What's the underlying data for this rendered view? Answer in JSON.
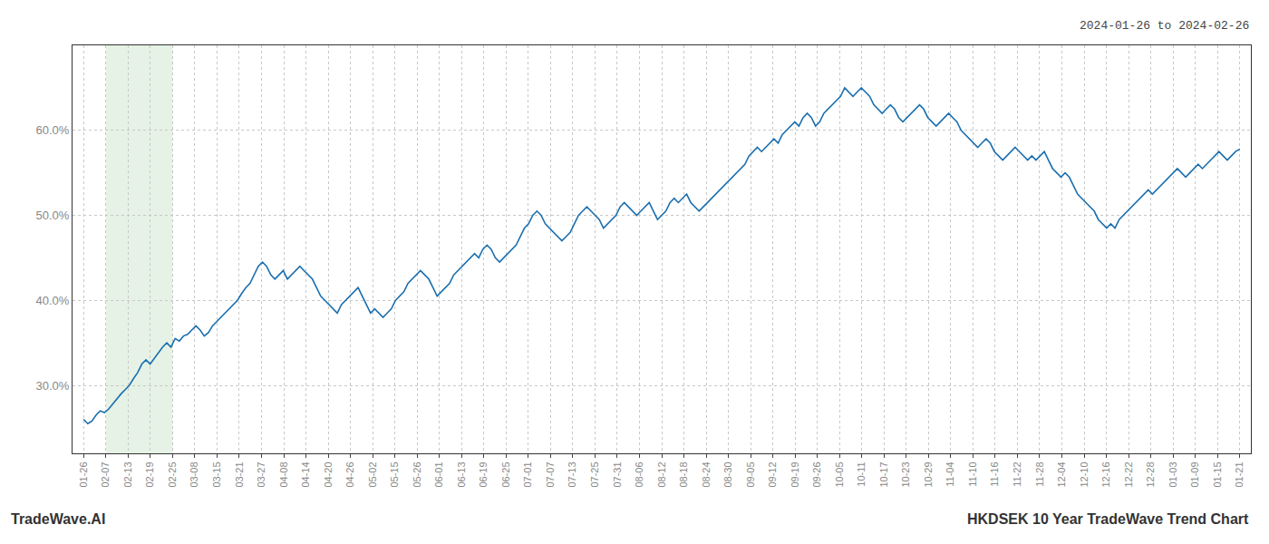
{
  "chart_data": {
    "type": "line",
    "title": "HKDSEK 10 Year TradeWave Trend Chart",
    "subtitle": "2024-01-26 to 2024-02-26",
    "annotations": [
      "TradeWave.AI"
    ],
    "color": "#1a6faf",
    "grid": true,
    "shaded_region": {
      "start": "02-07",
      "end": "02-25",
      "color": "#d4ead4"
    },
    "ylim": [
      22.0,
      70.0
    ],
    "yticks": [
      {
        "value": 30.0,
        "label": "30.0%"
      },
      {
        "value": 40.0,
        "label": "40.0%"
      },
      {
        "value": 50.0,
        "label": "50.0%"
      },
      {
        "value": 60.0,
        "label": "60.0%"
      }
    ],
    "xlim": [
      -0.5,
      52.5
    ],
    "xticks": [
      {
        "value": 0,
        "label": "01-26"
      },
      {
        "value": 1,
        "label": "02-07"
      },
      {
        "value": 2,
        "label": "02-13"
      },
      {
        "value": 3,
        "label": "02-19"
      },
      {
        "value": 4,
        "label": "02-25"
      },
      {
        "value": 5,
        "label": "03-08"
      },
      {
        "value": 6,
        "label": "03-15"
      },
      {
        "value": 7,
        "label": "03-21"
      },
      {
        "value": 8,
        "label": "03-27"
      },
      {
        "value": 9,
        "label": "04-08"
      },
      {
        "value": 10,
        "label": "04-14"
      },
      {
        "value": 11,
        "label": "04-20"
      },
      {
        "value": 12,
        "label": "04-26"
      },
      {
        "value": 13,
        "label": "05-02"
      },
      {
        "value": 14,
        "label": "05-15"
      },
      {
        "value": 15,
        "label": "05-26"
      },
      {
        "value": 16,
        "label": "06-01"
      },
      {
        "value": 17,
        "label": "06-13"
      },
      {
        "value": 18,
        "label": "06-19"
      },
      {
        "value": 19,
        "label": "06-25"
      },
      {
        "value": 20,
        "label": "07-01"
      },
      {
        "value": 21,
        "label": "07-07"
      },
      {
        "value": 22,
        "label": "07-13"
      },
      {
        "value": 23,
        "label": "07-25"
      },
      {
        "value": 24,
        "label": "07-31"
      },
      {
        "value": 25,
        "label": "08-06"
      },
      {
        "value": 26,
        "label": "08-12"
      },
      {
        "value": 27,
        "label": "08-18"
      },
      {
        "value": 28,
        "label": "08-24"
      },
      {
        "value": 29,
        "label": "08-30"
      },
      {
        "value": 30,
        "label": "09-05"
      },
      {
        "value": 31,
        "label": "09-12"
      },
      {
        "value": 32,
        "label": "09-19"
      },
      {
        "value": 33,
        "label": "09-26"
      },
      {
        "value": 34,
        "label": "10-05"
      },
      {
        "value": 35,
        "label": "10-11"
      },
      {
        "value": 36,
        "label": "10-17"
      },
      {
        "value": 37,
        "label": "10-23"
      },
      {
        "value": 38,
        "label": "10-29"
      },
      {
        "value": 39,
        "label": "11-04"
      },
      {
        "value": 40,
        "label": "11-10"
      },
      {
        "value": 41,
        "label": "11-16"
      },
      {
        "value": 42,
        "label": "11-22"
      },
      {
        "value": 43,
        "label": "11-28"
      },
      {
        "value": 44,
        "label": "12-04"
      },
      {
        "value": 45,
        "label": "12-10"
      },
      {
        "value": 46,
        "label": "12-16"
      },
      {
        "value": 47,
        "label": "12-22"
      },
      {
        "value": 48,
        "label": "12-28"
      },
      {
        "value": 49,
        "label": "01-03"
      },
      {
        "value": 50,
        "label": "01-09"
      },
      {
        "value": 51,
        "label": "01-15"
      },
      {
        "value": 52,
        "label": "01-21"
      }
    ],
    "values": [
      26.0,
      25.5,
      25.8,
      26.5,
      27.0,
      26.8,
      27.2,
      27.8,
      28.5,
      29.0,
      29.5,
      30.0,
      30.8,
      31.5,
      32.5,
      33.0,
      32.5,
      33.2,
      33.8,
      34.5,
      35.0,
      34.5,
      35.5,
      35.2,
      35.8,
      36.0,
      36.5,
      37.0,
      36.5,
      35.8,
      36.2,
      37.0,
      37.5,
      38.0,
      38.5,
      39.0,
      39.5,
      40.0,
      40.8,
      41.5,
      42.0,
      43.0,
      44.0,
      44.5,
      44.0,
      43.0,
      42.5,
      43.0,
      43.5,
      42.5,
      43.0,
      43.5,
      44.0,
      43.5,
      43.0,
      42.5,
      41.5,
      40.5,
      40.0,
      39.5,
      39.0,
      38.5,
      39.5,
      40.0,
      40.5,
      41.0,
      41.5,
      40.5,
      39.5,
      38.5,
      39.0,
      38.5,
      38.0,
      38.5,
      39.0,
      40.0,
      40.5,
      41.0,
      42.0,
      42.5,
      43.0,
      43.5,
      43.0,
      42.5,
      41.5,
      40.5,
      41.0,
      41.5,
      42.0,
      43.0,
      43.5,
      44.0,
      44.5,
      45.0,
      45.5,
      45.0,
      46.0,
      46.5,
      46.0,
      45.0,
      44.5,
      45.0,
      45.5,
      46.0,
      46.5,
      47.5,
      48.5,
      49.0,
      50.0,
      50.5,
      50.0,
      49.0,
      48.5,
      48.0,
      47.5,
      47.0,
      47.5,
      48.0,
      49.0,
      50.0,
      50.5,
      51.0,
      50.5,
      50.0,
      49.5,
      48.5,
      49.0,
      49.5,
      50.0,
      51.0,
      51.5,
      51.0,
      50.5,
      50.0,
      50.5,
      51.0,
      51.5,
      50.5,
      49.5,
      50.0,
      50.5,
      51.5,
      52.0,
      51.5,
      52.0,
      52.5,
      51.5,
      51.0,
      50.5,
      51.0,
      51.5,
      52.0,
      52.5,
      53.0,
      53.5,
      54.0,
      54.5,
      55.0,
      55.5,
      56.0,
      57.0,
      57.5,
      58.0,
      57.5,
      58.0,
      58.5,
      59.0,
      58.5,
      59.5,
      60.0,
      60.5,
      61.0,
      60.5,
      61.5,
      62.0,
      61.5,
      60.5,
      61.0,
      62.0,
      62.5,
      63.0,
      63.5,
      64.0,
      65.0,
      64.5,
      64.0,
      64.5,
      65.0,
      64.5,
      64.0,
      63.0,
      62.5,
      62.0,
      62.5,
      63.0,
      62.5,
      61.5,
      61.0,
      61.5,
      62.0,
      62.5,
      63.0,
      62.5,
      61.5,
      61.0,
      60.5,
      61.0,
      61.5,
      62.0,
      61.5,
      61.0,
      60.0,
      59.5,
      59.0,
      58.5,
      58.0,
      58.5,
      59.0,
      58.5,
      57.5,
      57.0,
      56.5,
      57.0,
      57.5,
      58.0,
      57.5,
      57.0,
      56.5,
      57.0,
      56.5,
      57.0,
      57.5,
      56.5,
      55.5,
      55.0,
      54.5,
      55.0,
      54.5,
      53.5,
      52.5,
      52.0,
      51.5,
      51.0,
      50.5,
      49.5,
      49.0,
      48.5,
      49.0,
      48.5,
      49.5,
      50.0,
      50.5,
      51.0,
      51.5,
      52.0,
      52.5,
      53.0,
      52.5,
      53.0,
      53.5,
      54.0,
      54.5,
      55.0,
      55.5,
      55.0,
      54.5,
      55.0,
      55.5,
      56.0,
      55.5,
      56.0,
      56.5,
      57.0,
      57.5,
      57.0,
      56.5,
      57.0,
      57.5,
      57.8
    ]
  }
}
